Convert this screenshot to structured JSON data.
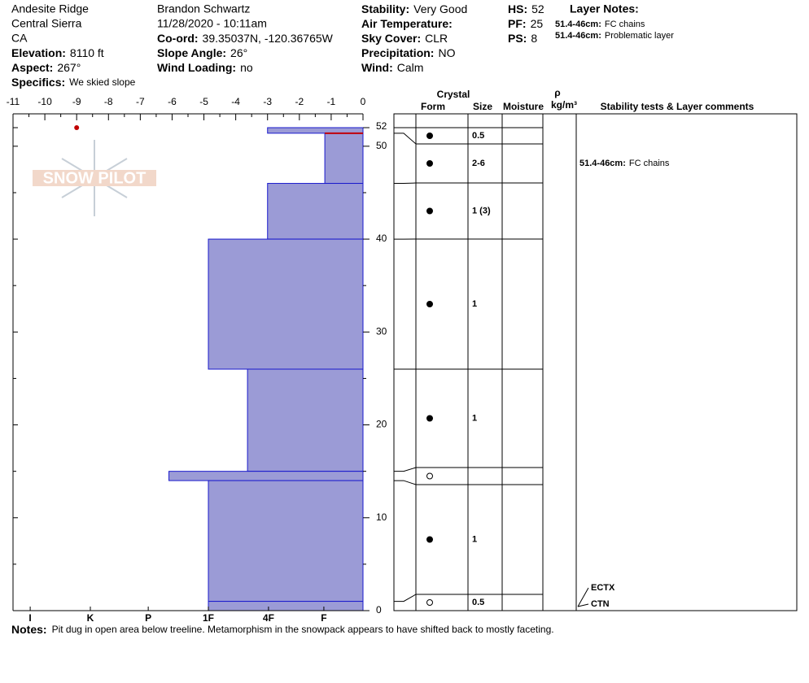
{
  "header": {
    "col1": [
      "Andesite Ridge",
      "Central Sierra",
      "CA",
      {
        "label": "Elevation:",
        "value": "8110 ft"
      },
      {
        "label": "Aspect:",
        "value": "267°"
      },
      {
        "label": "Specifics:",
        "value": "We skied slope"
      }
    ],
    "col2": [
      "Brandon Schwartz",
      "11/28/2020 - 10:11am",
      {
        "label": "Co-ord:",
        "value": "39.35037N, -120.36765W"
      },
      {
        "label": "Slope Angle:",
        "value": "26°"
      },
      {
        "label": "Wind Loading:",
        "value": "no"
      }
    ],
    "col3": [
      {
        "label": "Stability:",
        "value": "Very Good"
      },
      {
        "label": "Air Temperature:",
        "value": ""
      },
      {
        "label": "Sky Cover:",
        "value": "CLR"
      },
      {
        "label": "Precipitation:",
        "value": "NO"
      },
      {
        "label": "Wind:",
        "value": "Calm"
      }
    ],
    "col4": [
      {
        "label": "HS:",
        "value": "52"
      },
      {
        "label": "PF:",
        "value": "25"
      },
      {
        "label": "PS:",
        "value": "8"
      }
    ],
    "layer_notes_title": "Layer Notes:",
    "layer_notes": [
      {
        "label": "51.4-46cm:",
        "value": "FC chains"
      },
      {
        "label": "51.4-46cm:",
        "value": "Problematic layer"
      }
    ]
  },
  "logo": "SNOW PILOT",
  "chart_data": {
    "type": "hardness-profile",
    "xlim": [
      -11,
      0
    ],
    "xticks": [
      -11,
      -10,
      -9,
      -8,
      -7,
      -6,
      -5,
      -4,
      -3,
      -2,
      -1,
      0
    ],
    "ylim": [
      0,
      52
    ],
    "yticks": [
      0,
      10,
      20,
      30,
      40,
      50,
      52
    ],
    "hardness_scale": [
      {
        "value": -10.46,
        "label": "I"
      },
      {
        "value": -8.57,
        "label": "K"
      },
      {
        "value": -6.75,
        "label": "P"
      },
      {
        "value": -4.86,
        "label": "1F"
      },
      {
        "value": -2.97,
        "label": "4F"
      },
      {
        "value": -1.23,
        "label": "F"
      }
    ],
    "layers": [
      {
        "bottom": 51.4,
        "top": 52,
        "hardness": -3
      },
      {
        "bottom": 46,
        "top": 51.4,
        "hardness": -1.2
      },
      {
        "bottom": 40,
        "top": 46,
        "hardness": -3
      },
      {
        "bottom": 26,
        "top": 40,
        "hardness": -4.86
      },
      {
        "bottom": 15,
        "top": 26,
        "hardness": -3.63
      },
      {
        "bottom": 14,
        "top": 15,
        "hardness": -6.1
      },
      {
        "bottom": 1,
        "top": 14,
        "hardness": -4.86
      },
      {
        "bottom": 0,
        "top": 1,
        "hardness": -4.86
      }
    ],
    "critical_layer": 51.4,
    "temperature": {
      "x": [
        -9
      ],
      "y": [
        52
      ]
    },
    "color": "#9b9bd6"
  },
  "table": {
    "crystal": "Crystal",
    "form": "Form",
    "size": "Size",
    "moisture": "Moisture",
    "rho": "ρ",
    "density": "kg/m³",
    "comments": "Stability tests & Layer comments",
    "rows": [
      {
        "size": "0.5"
      },
      {
        "size": "2-6",
        "comment_label": "51.4-46cm:",
        "comment": "FC chains"
      },
      {
        "size": "1 (3)"
      },
      {
        "size": "1"
      },
      {
        "size": "1"
      },
      {},
      {
        "size": "1"
      },
      {
        "size": "0.5"
      }
    ],
    "tests": [
      "ECTX",
      "CTN"
    ]
  },
  "notes": {
    "label": "Notes:",
    "text": "Pit dug in open area below treeline. Metamorphism in the snowpack appears to have shifted back to mostly faceting."
  }
}
